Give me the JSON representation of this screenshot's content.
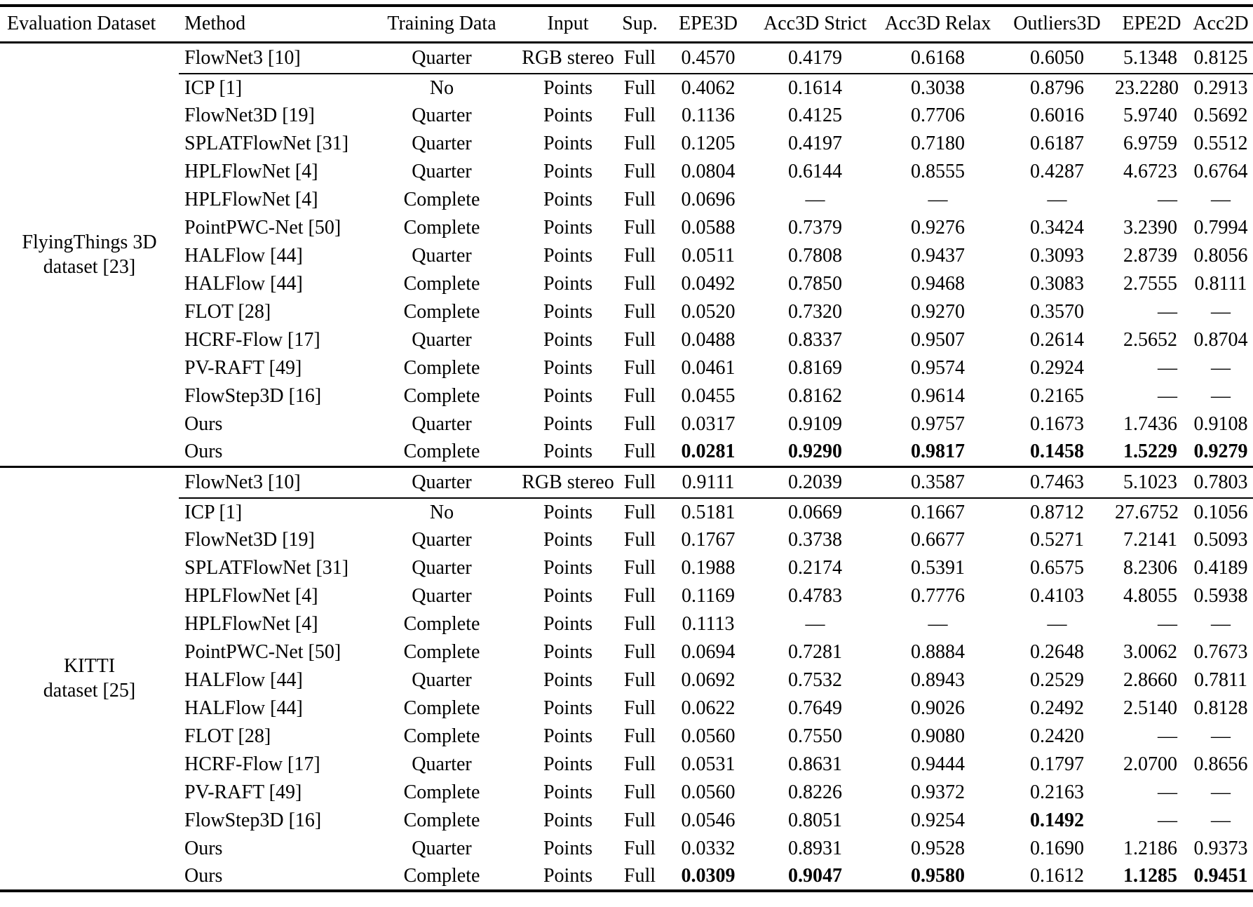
{
  "table": {
    "columns": [
      "Evaluation Dataset",
      "Method",
      "Training Data",
      "Input",
      "Sup.",
      "EPE3D",
      "Acc3D Strict",
      "Acc3D Relax",
      "Outliers3D",
      "EPE2D",
      "Acc2D"
    ],
    "sections": [
      {
        "dataset_lines": [
          "FlyingThings 3D",
          "dataset [23]"
        ],
        "rgb_row": {
          "method": "FlowNet3 [10]",
          "training": "Quarter",
          "input": "RGB stereo",
          "sup": "Full",
          "values": [
            "0.4570",
            "0.4179",
            "0.6168",
            "0.6050",
            "5.1348",
            "0.8125"
          ],
          "bold": []
        },
        "rows": [
          {
            "method": "ICP [1]",
            "training": "No",
            "input": "Points",
            "sup": "Full",
            "values": [
              "0.4062",
              "0.1614",
              "0.3038",
              "0.8796",
              "23.2280",
              "0.2913"
            ],
            "bold": []
          },
          {
            "method": "FlowNet3D [19]",
            "training": "Quarter",
            "input": "Points",
            "sup": "Full",
            "values": [
              "0.1136",
              "0.4125",
              "0.7706",
              "0.6016",
              "5.9740",
              "0.5692"
            ],
            "bold": []
          },
          {
            "method": "SPLATFlowNet [31]",
            "training": "Quarter",
            "input": "Points",
            "sup": "Full",
            "values": [
              "0.1205",
              "0.4197",
              "0.7180",
              "0.6187",
              "6.9759",
              "0.5512"
            ],
            "bold": []
          },
          {
            "method": "HPLFlowNet [4]",
            "training": "Quarter",
            "input": "Points",
            "sup": "Full",
            "values": [
              "0.0804",
              "0.6144",
              "0.8555",
              "0.4287",
              "4.6723",
              "0.6764"
            ],
            "bold": []
          },
          {
            "method": "HPLFlowNet [4]",
            "training": "Complete",
            "input": "Points",
            "sup": "Full",
            "values": [
              "0.0696",
              "—",
              "—",
              "—",
              "—",
              "—"
            ],
            "bold": []
          },
          {
            "method": "PointPWC-Net [50]",
            "training": "Complete",
            "input": "Points",
            "sup": "Full",
            "values": [
              "0.0588",
              "0.7379",
              "0.9276",
              "0.3424",
              "3.2390",
              "0.7994"
            ],
            "bold": []
          },
          {
            "method": "HALFlow [44]",
            "training": "Quarter",
            "input": "Points",
            "sup": "Full",
            "values": [
              "0.0511",
              "0.7808",
              "0.9437",
              "0.3093",
              "2.8739",
              "0.8056"
            ],
            "bold": []
          },
          {
            "method": "HALFlow [44]",
            "training": "Complete",
            "input": "Points",
            "sup": "Full",
            "values": [
              "0.0492",
              "0.7850",
              "0.9468",
              "0.3083",
              "2.7555",
              "0.8111"
            ],
            "bold": []
          },
          {
            "method": "FLOT [28]",
            "training": "Complete",
            "input": "Points",
            "sup": "Full",
            "values": [
              "0.0520",
              "0.7320",
              "0.9270",
              "0.3570",
              "—",
              "—"
            ],
            "bold": []
          },
          {
            "method": "HCRF-Flow [17]",
            "training": "Quarter",
            "input": "Points",
            "sup": "Full",
            "values": [
              "0.0488",
              "0.8337",
              "0.9507",
              "0.2614",
              "2.5652",
              "0.8704"
            ],
            "bold": []
          },
          {
            "method": "PV-RAFT [49]",
            "training": "Complete",
            "input": "Points",
            "sup": "Full",
            "values": [
              "0.0461",
              "0.8169",
              "0.9574",
              "0.2924",
              "—",
              "—"
            ],
            "bold": []
          },
          {
            "method": "FlowStep3D [16]",
            "training": "Complete",
            "input": "Points",
            "sup": "Full",
            "values": [
              "0.0455",
              "0.8162",
              "0.9614",
              "0.2165",
              "—",
              "—"
            ],
            "bold": []
          },
          {
            "method": "Ours",
            "training": "Quarter",
            "input": "Points",
            "sup": "Full",
            "values": [
              "0.0317",
              "0.9109",
              "0.9757",
              "0.1673",
              "1.7436",
              "0.9108"
            ],
            "bold": []
          },
          {
            "method": "Ours",
            "training": "Complete",
            "input": "Points",
            "sup": "Full",
            "values": [
              "0.0281",
              "0.9290",
              "0.9817",
              "0.1458",
              "1.5229",
              "0.9279"
            ],
            "bold": [
              0,
              1,
              2,
              3,
              4,
              5
            ]
          }
        ]
      },
      {
        "dataset_lines": [
          "KITTI",
          "dataset [25]"
        ],
        "rgb_row": {
          "method": "FlowNet3 [10]",
          "training": "Quarter",
          "input": "RGB stereo",
          "sup": "Full",
          "values": [
            "0.9111",
            "0.2039",
            "0.3587",
            "0.7463",
            "5.1023",
            "0.7803"
          ],
          "bold": []
        },
        "rows": [
          {
            "method": "ICP [1]",
            "training": "No",
            "input": "Points",
            "sup": "Full",
            "values": [
              "0.5181",
              "0.0669",
              "0.1667",
              "0.8712",
              "27.6752",
              "0.1056"
            ],
            "bold": []
          },
          {
            "method": "FlowNet3D [19]",
            "training": "Quarter",
            "input": "Points",
            "sup": "Full",
            "values": [
              "0.1767",
              "0.3738",
              "0.6677",
              "0.5271",
              "7.2141",
              "0.5093"
            ],
            "bold": []
          },
          {
            "method": "SPLATFlowNet [31]",
            "training": "Quarter",
            "input": "Points",
            "sup": "Full",
            "values": [
              "0.1988",
              "0.2174",
              "0.5391",
              "0.6575",
              "8.2306",
              "0.4189"
            ],
            "bold": []
          },
          {
            "method": "HPLFlowNet [4]",
            "training": "Quarter",
            "input": "Points",
            "sup": "Full",
            "values": [
              "0.1169",
              "0.4783",
              "0.7776",
              "0.4103",
              "4.8055",
              "0.5938"
            ],
            "bold": []
          },
          {
            "method": "HPLFlowNet [4]",
            "training": "Complete",
            "input": "Points",
            "sup": "Full",
            "values": [
              "0.1113",
              "—",
              "—",
              "—",
              "—",
              "—"
            ],
            "bold": []
          },
          {
            "method": "PointPWC-Net [50]",
            "training": "Complete",
            "input": "Points",
            "sup": "Full",
            "values": [
              "0.0694",
              "0.7281",
              "0.8884",
              "0.2648",
              "3.0062",
              "0.7673"
            ],
            "bold": []
          },
          {
            "method": "HALFlow [44]",
            "training": "Quarter",
            "input": "Points",
            "sup": "Full",
            "values": [
              "0.0692",
              "0.7532",
              "0.8943",
              "0.2529",
              "2.8660",
              "0.7811"
            ],
            "bold": []
          },
          {
            "method": "HALFlow [44]",
            "training": "Complete",
            "input": "Points",
            "sup": "Full",
            "values": [
              "0.0622",
              "0.7649",
              "0.9026",
              "0.2492",
              "2.5140",
              "0.8128"
            ],
            "bold": []
          },
          {
            "method": "FLOT [28]",
            "training": "Complete",
            "input": "Points",
            "sup": "Full",
            "values": [
              "0.0560",
              "0.7550",
              "0.9080",
              "0.2420",
              "—",
              "—"
            ],
            "bold": []
          },
          {
            "method": "HCRF-Flow [17]",
            "training": "Quarter",
            "input": "Points",
            "sup": "Full",
            "values": [
              "0.0531",
              "0.8631",
              "0.9444",
              "0.1797",
              "2.0700",
              "0.8656"
            ],
            "bold": []
          },
          {
            "method": "PV-RAFT [49]",
            "training": "Complete",
            "input": "Points",
            "sup": "Full",
            "values": [
              "0.0560",
              "0.8226",
              "0.9372",
              "0.2163",
              "—",
              "—"
            ],
            "bold": []
          },
          {
            "method": "FlowStep3D [16]",
            "training": "Complete",
            "input": "Points",
            "sup": "Full",
            "values": [
              "0.0546",
              "0.8051",
              "0.9254",
              "0.1492",
              "—",
              "—"
            ],
            "bold": [
              3
            ]
          },
          {
            "method": "Ours",
            "training": "Quarter",
            "input": "Points",
            "sup": "Full",
            "values": [
              "0.0332",
              "0.8931",
              "0.9528",
              "0.1690",
              "1.2186",
              "0.9373"
            ],
            "bold": []
          },
          {
            "method": "Ours",
            "training": "Complete",
            "input": "Points",
            "sup": "Full",
            "values": [
              "0.0309",
              "0.9047",
              "0.9580",
              "0.1612",
              "1.1285",
              "0.9451"
            ],
            "bold": [
              0,
              1,
              2,
              4,
              5
            ]
          }
        ]
      }
    ]
  }
}
